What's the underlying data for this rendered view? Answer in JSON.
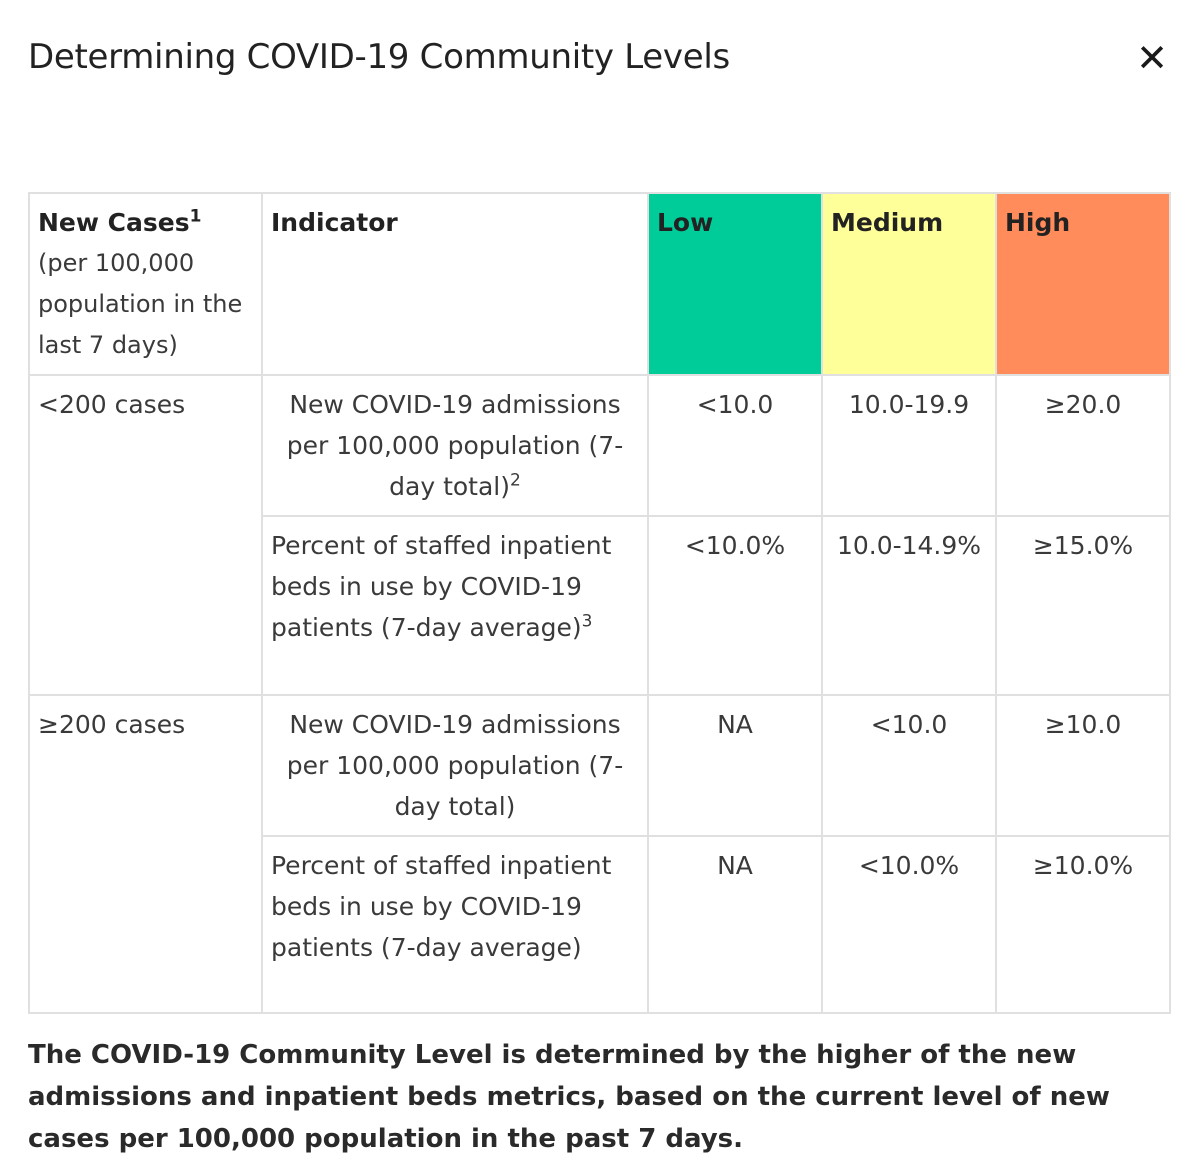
{
  "dialog": {
    "title": "Determining COVID-19 Community Levels",
    "close_glyph": "✕"
  },
  "table": {
    "headers": {
      "new_cases": "New Cases",
      "new_cases_sup": "1",
      "new_cases_sub": "(per 100,000 population in the last 7 days)",
      "indicator": "Indicator",
      "low": "Low",
      "medium": "Medium",
      "high": "High"
    },
    "colors": {
      "low": "#00cc99",
      "medium": "#ffff99",
      "high": "#ff8c5a"
    },
    "groups": [
      {
        "cases": "<200 cases",
        "rows": [
          {
            "indicator": "New COVID-19 admissions per 100,000 population (7-day total)",
            "sup": "2",
            "low": "<10.0",
            "medium": "10.0-19.9",
            "high": "≥20.0"
          },
          {
            "indicator": "Percent of staffed inpatient beds in use by COVID-19 patients (7-day average)",
            "sup": "3",
            "low": "<10.0%",
            "medium": "10.0-14.9%",
            "high": "≥15.0%"
          }
        ]
      },
      {
        "cases": "≥200 cases",
        "rows": [
          {
            "indicator": "New COVID-19 admissions per 100,000 population (7-day total)",
            "sup": "",
            "low": "NA",
            "medium": "<10.0",
            "high": "≥10.0"
          },
          {
            "indicator": "Percent of staffed inpatient beds in use by COVID-19 patients (7-day average)",
            "sup": "",
            "low": "NA",
            "medium": "<10.0%",
            "high": "≥10.0%"
          }
        ]
      }
    ]
  },
  "summary": "The COVID-19 Community Level is determined by the higher of the new admissions and inpatient beds metrics, based on the current level of new cases per 100,000 population in the past 7 days."
}
